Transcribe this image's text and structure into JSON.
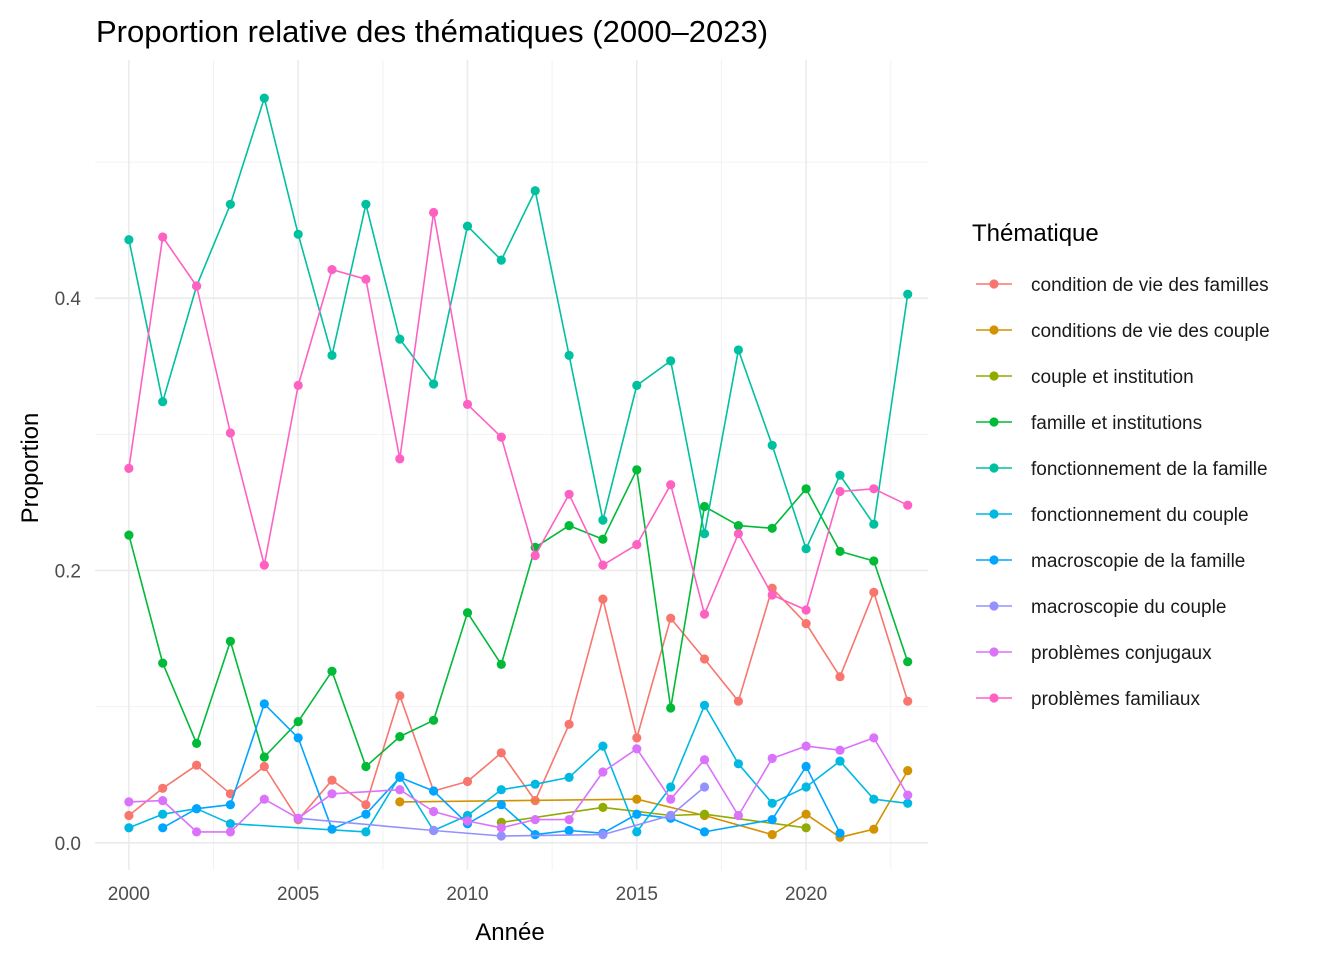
{
  "chart_data": {
    "type": "line",
    "title": "Proportion relative des thématiques (2000–2023)",
    "xlabel": "Année",
    "ylabel": "Proportion",
    "xlim": [
      1999.0,
      2023.6
    ],
    "ylim": [
      -0.02,
      0.575
    ],
    "x_ticks": [
      2000,
      2005,
      2010,
      2015,
      2020
    ],
    "x_tick_labels": [
      "2000",
      "2005",
      "2010",
      "2015",
      "2020"
    ],
    "y_ticks": [
      0.0,
      0.2,
      0.4
    ],
    "y_tick_labels": [
      "0.0",
      "0.2",
      "0.4"
    ],
    "grid": true,
    "legend": {
      "title": "Thématique",
      "position": "right"
    },
    "series": [
      {
        "name": "condition de vie des familles",
        "color": "#F8766D",
        "points": [
          [
            2000,
            0.02
          ],
          [
            2001,
            0.04
          ],
          [
            2002,
            0.057
          ],
          [
            2003,
            0.036
          ],
          [
            2004,
            0.056
          ],
          [
            2005,
            0.017
          ],
          [
            2006,
            0.046
          ],
          [
            2007,
            0.028
          ],
          [
            2008,
            0.108
          ],
          [
            2009,
            0.038
          ],
          [
            2010,
            0.045
          ],
          [
            2011,
            0.066
          ],
          [
            2012,
            0.031
          ],
          [
            2013,
            0.087
          ],
          [
            2014,
            0.179
          ],
          [
            2015,
            0.077
          ],
          [
            2016,
            0.165
          ],
          [
            2017,
            0.135
          ],
          [
            2018,
            0.104
          ],
          [
            2019,
            0.187
          ],
          [
            2020,
            0.161
          ],
          [
            2021,
            0.122
          ],
          [
            2022,
            0.184
          ],
          [
            2023,
            0.104
          ]
        ]
      },
      {
        "name": "conditions de vie des couple",
        "color": "#D39200",
        "points": [
          [
            2008,
            0.03
          ],
          [
            2015,
            0.032
          ],
          [
            2017,
            0.02
          ],
          [
            2019,
            0.006
          ],
          [
            2020,
            0.021
          ],
          [
            2021,
            0.004
          ],
          [
            2022,
            0.01
          ],
          [
            2023,
            0.053
          ]
        ]
      },
      {
        "name": "couple et institution",
        "color": "#93AA00",
        "points": [
          [
            2011,
            0.015
          ],
          [
            2014,
            0.026
          ],
          [
            2016,
            0.02
          ],
          [
            2017,
            0.021
          ],
          [
            2020,
            0.011
          ]
        ]
      },
      {
        "name": "famille et institutions",
        "color": "#00BA38",
        "points": [
          [
            2000,
            0.226
          ],
          [
            2001,
            0.132
          ],
          [
            2002,
            0.073
          ],
          [
            2003,
            0.148
          ],
          [
            2004,
            0.063
          ],
          [
            2005,
            0.089
          ],
          [
            2006,
            0.126
          ],
          [
            2007,
            0.056
          ],
          [
            2008,
            0.078
          ],
          [
            2009,
            0.09
          ],
          [
            2010,
            0.169
          ],
          [
            2011,
            0.131
          ],
          [
            2012,
            0.217
          ],
          [
            2013,
            0.233
          ],
          [
            2014,
            0.223
          ],
          [
            2015,
            0.274
          ],
          [
            2016,
            0.099
          ],
          [
            2017,
            0.247
          ],
          [
            2018,
            0.233
          ],
          [
            2019,
            0.231
          ],
          [
            2020,
            0.26
          ],
          [
            2021,
            0.214
          ],
          [
            2022,
            0.207
          ],
          [
            2023,
            0.133
          ]
        ]
      },
      {
        "name": "fonctionnement de la famille",
        "color": "#00C19F",
        "points": [
          [
            2000,
            0.443
          ],
          [
            2001,
            0.324
          ],
          [
            2002,
            0.409
          ],
          [
            2003,
            0.469
          ],
          [
            2004,
            0.547
          ],
          [
            2005,
            0.447
          ],
          [
            2006,
            0.358
          ],
          [
            2007,
            0.469
          ],
          [
            2008,
            0.37
          ],
          [
            2009,
            0.337
          ],
          [
            2010,
            0.453
          ],
          [
            2011,
            0.428
          ],
          [
            2012,
            0.479
          ],
          [
            2013,
            0.358
          ],
          [
            2014,
            0.237
          ],
          [
            2015,
            0.336
          ],
          [
            2016,
            0.354
          ],
          [
            2017,
            0.227
          ],
          [
            2018,
            0.362
          ],
          [
            2019,
            0.292
          ],
          [
            2020,
            0.216
          ],
          [
            2021,
            0.27
          ],
          [
            2022,
            0.234
          ],
          [
            2023,
            0.403
          ]
        ]
      },
      {
        "name": "fonctionnement du couple",
        "color": "#00B9E3",
        "points": [
          [
            2000,
            0.011
          ],
          [
            2001,
            0.021
          ],
          [
            2002,
            0.025
          ],
          [
            2003,
            0.014
          ],
          [
            2007,
            0.008
          ],
          [
            2008,
            0.049
          ],
          [
            2009,
            0.009
          ],
          [
            2010,
            0.02
          ],
          [
            2011,
            0.039
          ],
          [
            2012,
            0.043
          ],
          [
            2013,
            0.048
          ],
          [
            2014,
            0.071
          ],
          [
            2015,
            0.008
          ],
          [
            2016,
            0.041
          ],
          [
            2017,
            0.101
          ],
          [
            2018,
            0.058
          ],
          [
            2019,
            0.029
          ],
          [
            2020,
            0.041
          ],
          [
            2021,
            0.06
          ],
          [
            2022,
            0.032
          ],
          [
            2023,
            0.029
          ]
        ]
      },
      {
        "name": "macroscopie de la famille",
        "color": "#00A5FF",
        "points": [
          [
            2001,
            0.011
          ],
          [
            2002,
            0.025
          ],
          [
            2003,
            0.028
          ],
          [
            2004,
            0.102
          ],
          [
            2005,
            0.077
          ],
          [
            2006,
            0.01
          ],
          [
            2007,
            0.021
          ],
          [
            2008,
            0.048
          ],
          [
            2009,
            0.038
          ],
          [
            2010,
            0.014
          ],
          [
            2011,
            0.028
          ],
          [
            2012,
            0.006
          ],
          [
            2013,
            0.009
          ],
          [
            2014,
            0.007
          ],
          [
            2015,
            0.021
          ],
          [
            2016,
            0.018
          ],
          [
            2017,
            0.008
          ],
          [
            2019,
            0.017
          ],
          [
            2020,
            0.056
          ],
          [
            2021,
            0.007
          ]
        ]
      },
      {
        "name": "macroscopie du couple",
        "color": "#9590FF",
        "points": [
          [
            2005,
            0.018
          ],
          [
            2009,
            0.009
          ],
          [
            2011,
            0.005
          ],
          [
            2014,
            0.006
          ],
          [
            2016,
            0.02
          ],
          [
            2017,
            0.041
          ]
        ]
      },
      {
        "name": "problèmes conjugaux",
        "color": "#DB72FB",
        "points": [
          [
            2000,
            0.03
          ],
          [
            2001,
            0.031
          ],
          [
            2002,
            0.008
          ],
          [
            2003,
            0.008
          ],
          [
            2004,
            0.032
          ],
          [
            2005,
            0.018
          ],
          [
            2006,
            0.036
          ],
          [
            2008,
            0.039
          ],
          [
            2009,
            0.023
          ],
          [
            2010,
            0.016
          ],
          [
            2011,
            0.011
          ],
          [
            2012,
            0.017
          ],
          [
            2013,
            0.017
          ],
          [
            2014,
            0.052
          ],
          [
            2015,
            0.069
          ],
          [
            2016,
            0.032
          ],
          [
            2017,
            0.061
          ],
          [
            2018,
            0.02
          ],
          [
            2019,
            0.062
          ],
          [
            2020,
            0.071
          ],
          [
            2021,
            0.068
          ],
          [
            2022,
            0.077
          ],
          [
            2023,
            0.035
          ]
        ]
      },
      {
        "name": "problèmes familiaux",
        "color": "#FF61C3",
        "points": [
          [
            2000,
            0.275
          ],
          [
            2001,
            0.445
          ],
          [
            2002,
            0.409
          ],
          [
            2003,
            0.301
          ],
          [
            2004,
            0.204
          ],
          [
            2005,
            0.336
          ],
          [
            2006,
            0.421
          ],
          [
            2007,
            0.414
          ],
          [
            2008,
            0.282
          ],
          [
            2009,
            0.463
          ],
          [
            2010,
            0.322
          ],
          [
            2011,
            0.298
          ],
          [
            2012,
            0.211
          ],
          [
            2013,
            0.256
          ],
          [
            2014,
            0.204
          ],
          [
            2015,
            0.219
          ],
          [
            2016,
            0.263
          ],
          [
            2017,
            0.168
          ],
          [
            2018,
            0.227
          ],
          [
            2019,
            0.182
          ],
          [
            2020,
            0.171
          ],
          [
            2021,
            0.258
          ],
          [
            2022,
            0.26
          ],
          [
            2023,
            0.248
          ]
        ]
      }
    ]
  }
}
